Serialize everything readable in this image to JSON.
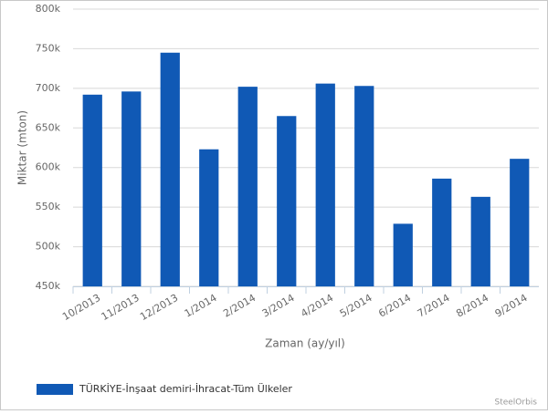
{
  "chart_data": {
    "type": "bar",
    "x_label": "Zaman (ay/yıl)",
    "y_label": "Miktar (mton)",
    "credit": "SteelOrbis",
    "categories": [
      "10/2013",
      "11/2013",
      "12/2013",
      "1/2014",
      "2/2014",
      "3/2014",
      "4/2014",
      "5/2014",
      "6/2014",
      "7/2014",
      "8/2014",
      "9/2014"
    ],
    "series": [
      {
        "name": "TÜRKİYE-İnşaat demiri-İhracat-Tüm Ülkeler",
        "color": "#1059b5",
        "values": [
          692000,
          696000,
          745000,
          623000,
          702000,
          665000,
          706000,
          703000,
          529000,
          586000,
          563000,
          611000
        ]
      }
    ],
    "ylim": [
      450000,
      800000
    ],
    "yticks": [
      {
        "value": 450000,
        "label": "450k"
      },
      {
        "value": 500000,
        "label": "500k"
      },
      {
        "value": 550000,
        "label": "550k"
      },
      {
        "value": 600000,
        "label": "600k"
      },
      {
        "value": 650000,
        "label": "650k"
      },
      {
        "value": 700000,
        "label": "700k"
      },
      {
        "value": 750000,
        "label": "750k"
      },
      {
        "value": 800000,
        "label": "800k"
      }
    ],
    "grid": true,
    "legend": "bottom-left"
  }
}
